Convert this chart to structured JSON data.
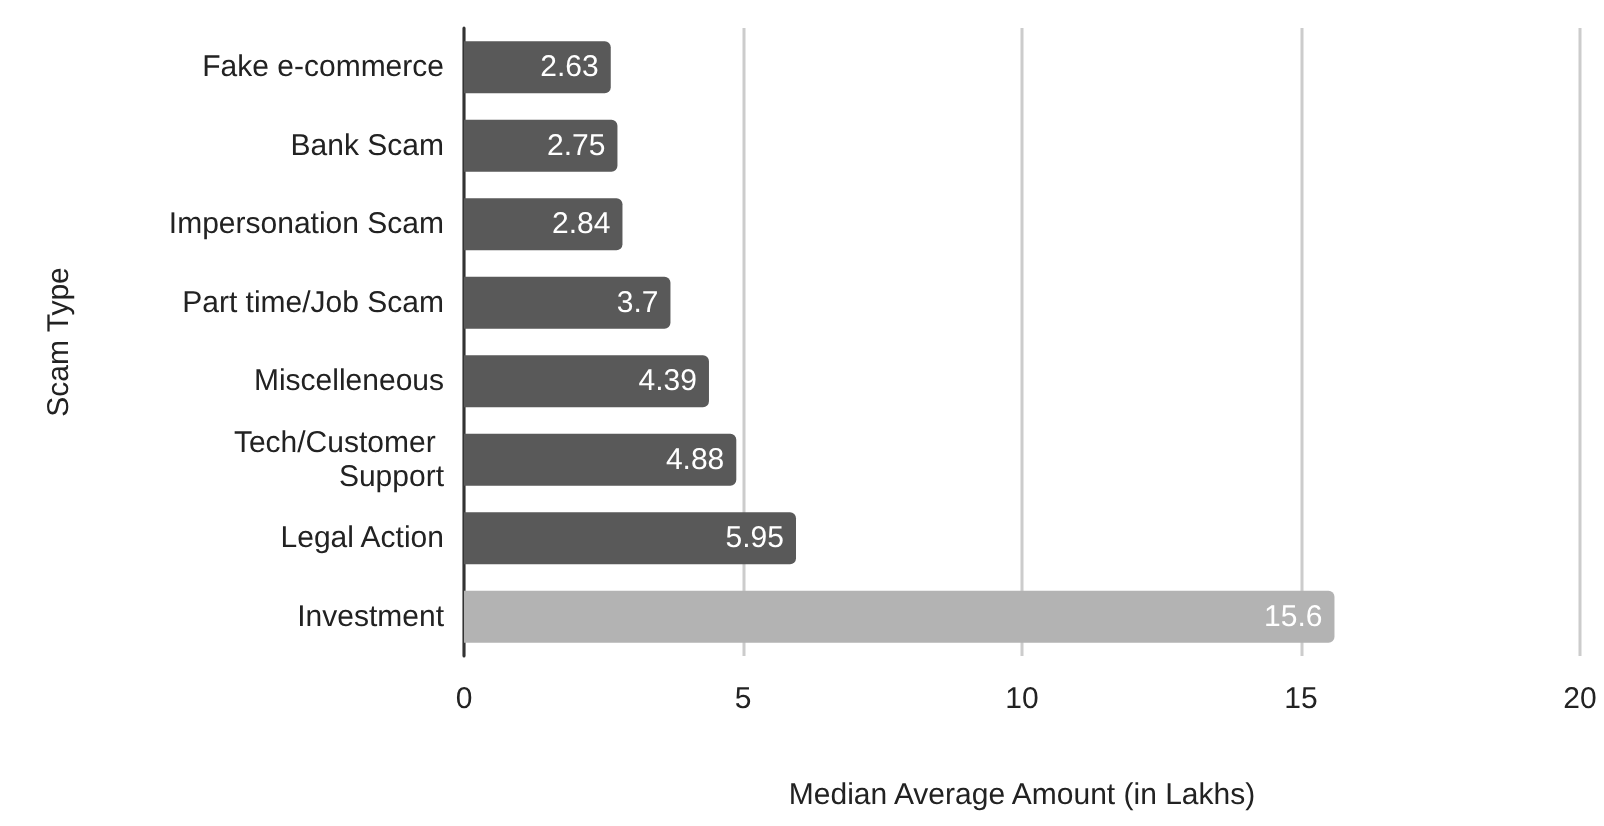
{
  "chart_data": {
    "type": "bar",
    "orientation": "horizontal",
    "xlabel": "Median Average Amount (in Lakhs)",
    "ylabel": "Scam Type",
    "categories": [
      "Fake e-commerce",
      "Bank Scam",
      "Impersonation Scam",
      "Part time/Job Scam",
      "Miscelleneous",
      "Tech/Customer Support",
      "Legal Action",
      "Investment"
    ],
    "values": [
      2.63,
      2.75,
      2.84,
      3.7,
      4.39,
      4.88,
      5.95,
      15.6
    ],
    "colors": [
      "#595959",
      "#595959",
      "#595959",
      "#595959",
      "#595959",
      "#595959",
      "#595959",
      "#b3b3b3"
    ],
    "xlim": [
      0,
      20
    ],
    "xticks": [
      0,
      5,
      10,
      15,
      20
    ],
    "grid": "x",
    "data_labels": true
  }
}
